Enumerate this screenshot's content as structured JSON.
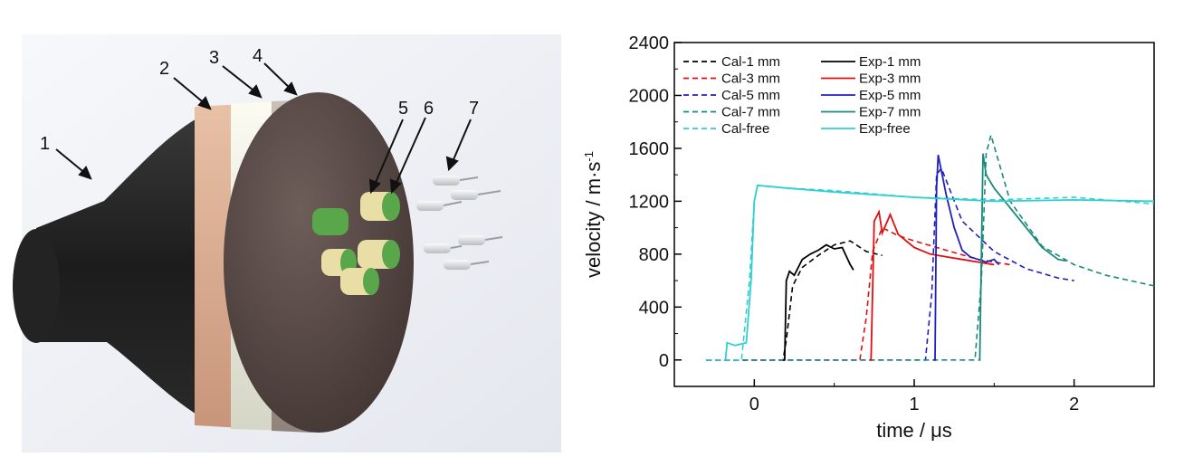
{
  "figure": {
    "callouts": [
      "1",
      "2",
      "3",
      "4",
      "5",
      "6",
      "7"
    ]
  },
  "chart_data": {
    "type": "line",
    "xlabel": "time / μs",
    "ylabel": "velocity / m·s",
    "ylabel_superscript": "-1",
    "xlim": [
      -0.5,
      2.5
    ],
    "ylim": [
      -200,
      2400
    ],
    "x_ticks": [
      0,
      1,
      2
    ],
    "y_ticks": [
      0,
      400,
      800,
      1200,
      1600,
      2000,
      2400
    ],
    "grid": false,
    "legend_position": "top-left",
    "series": [
      {
        "name": "Cal-1 mm",
        "color": "#000000",
        "dash": true,
        "x": [
          -0.3,
          0.18,
          0.2,
          0.24,
          0.3,
          0.4,
          0.5,
          0.6,
          0.7,
          0.8
        ],
        "y": [
          0,
          0,
          150,
          560,
          700,
          790,
          870,
          900,
          820,
          790
        ]
      },
      {
        "name": "Cal-3 mm",
        "color": "#e01010",
        "dash": true,
        "x": [
          -0.3,
          0.66,
          0.7,
          0.74,
          0.8,
          0.9,
          1.0,
          1.2,
          1.4,
          1.6
        ],
        "y": [
          0,
          0,
          320,
          820,
          1000,
          940,
          900,
          830,
          760,
          720
        ]
      },
      {
        "name": "Cal-5 mm",
        "color": "#2020c0",
        "dash": true,
        "x": [
          -0.3,
          1.07,
          1.11,
          1.14,
          1.17,
          1.3,
          1.5,
          1.7,
          1.9,
          2.0
        ],
        "y": [
          0,
          0,
          500,
          1400,
          1450,
          1050,
          820,
          690,
          620,
          600
        ]
      },
      {
        "name": "Cal-7 mm",
        "color": "#1a8a7a",
        "dash": true,
        "x": [
          -0.3,
          1.38,
          1.42,
          1.45,
          1.48,
          1.6,
          1.8,
          2.0,
          2.2,
          2.5
        ],
        "y": [
          0,
          0,
          600,
          1560,
          1700,
          1200,
          860,
          720,
          640,
          560
        ]
      },
      {
        "name": "Cal-free",
        "color": "#30d0d0",
        "dash": true,
        "x": [
          -0.3,
          -0.08,
          -0.03,
          0.0,
          0.02,
          0.2,
          0.5,
          1.0,
          1.5,
          2.0,
          2.5
        ],
        "y": [
          0,
          0,
          600,
          1200,
          1320,
          1300,
          1280,
          1230,
          1210,
          1230,
          1180
        ]
      },
      {
        "name": "Exp-1 mm",
        "color": "#000000",
        "dash": false,
        "x": [
          0.18,
          0.19,
          0.2,
          0.22,
          0.25,
          0.3,
          0.35,
          0.4,
          0.45,
          0.5,
          0.55,
          0.6,
          0.62
        ],
        "y": [
          0,
          0,
          600,
          670,
          640,
          760,
          800,
          830,
          870,
          840,
          850,
          720,
          680
        ]
      },
      {
        "name": "Exp-3 mm",
        "color": "#e01010",
        "dash": false,
        "x": [
          0.72,
          0.73,
          0.75,
          0.78,
          0.8,
          0.85,
          0.9,
          1.0,
          1.1,
          1.2,
          1.3,
          1.4,
          1.5
        ],
        "y": [
          0,
          0,
          1050,
          1120,
          960,
          1100,
          950,
          850,
          800,
          780,
          760,
          740,
          720
        ]
      },
      {
        "name": "Exp-5 mm",
        "color": "#2020c0",
        "dash": false,
        "x": [
          1.12,
          1.13,
          1.14,
          1.15,
          1.2,
          1.25,
          1.3,
          1.35,
          1.4,
          1.45,
          1.5,
          1.53
        ],
        "y": [
          0,
          0,
          1300,
          1550,
          1250,
          1000,
          830,
          780,
          760,
          740,
          760,
          720
        ]
      },
      {
        "name": "Exp-7 mm",
        "color": "#1a8a7a",
        "dash": false,
        "x": [
          1.4,
          1.41,
          1.43,
          1.45,
          1.5,
          1.6,
          1.7,
          1.8,
          1.9,
          1.95
        ],
        "y": [
          0,
          0,
          1560,
          1400,
          1300,
          1150,
          1000,
          850,
          760,
          750
        ]
      },
      {
        "name": "Exp-free",
        "color": "#30d0d0",
        "dash": false,
        "x": [
          -0.18,
          -0.17,
          -0.12,
          -0.05,
          -0.02,
          0.0,
          0.02,
          0.2,
          0.5,
          1.0,
          1.5,
          2.0,
          2.5
        ],
        "y": [
          0,
          130,
          110,
          130,
          600,
          1200,
          1320,
          1300,
          1270,
          1230,
          1200,
          1210,
          1200
        ]
      }
    ]
  }
}
